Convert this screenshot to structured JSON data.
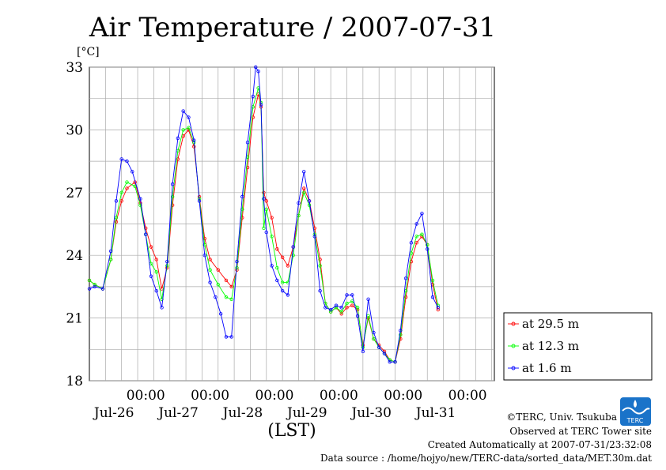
{
  "chart_data": {
    "type": "line",
    "title": "Air Temperature / 2007-07-31",
    "yunit": "[°C]",
    "xlabel": "(LST)",
    "ylim": [
      18,
      33
    ],
    "yticks": [
      18,
      21,
      24,
      27,
      30,
      33
    ],
    "xlim_hours": [
      0,
      144
    ],
    "xticks": [
      {
        "hour": 24,
        "time": "00:00",
        "date": "Jul-26"
      },
      {
        "hour": 48,
        "time": "00:00",
        "date": "Jul-27"
      },
      {
        "hour": 72,
        "time": "00:00",
        "date": "Jul-28"
      },
      {
        "hour": 96,
        "time": "00:00",
        "date": "Jul-29"
      },
      {
        "hour": 120,
        "time": "00:00",
        "date": "Jul-30"
      },
      {
        "hour": 144,
        "time": "00:00",
        "date": "Jul-31"
      }
    ],
    "grid": true,
    "legend_position": "right",
    "series": [
      {
        "name": "at 29.5 m",
        "color": "#ff0000",
        "points": [
          [
            0,
            22.8
          ],
          [
            2,
            22.6
          ],
          [
            5,
            22.4
          ],
          [
            8,
            23.8
          ],
          [
            10,
            25.6
          ],
          [
            12,
            26.6
          ],
          [
            14,
            27.2
          ],
          [
            17,
            27.5
          ],
          [
            19,
            26.5
          ],
          [
            21,
            25.3
          ],
          [
            23,
            24.4
          ],
          [
            25,
            23.8
          ],
          [
            27,
            22.4
          ],
          [
            29,
            23.4
          ],
          [
            31,
            26.4
          ],
          [
            33,
            28.6
          ],
          [
            35,
            29.7
          ],
          [
            37,
            30.0
          ],
          [
            39,
            29.2
          ],
          [
            41,
            26.8
          ],
          [
            43,
            24.8
          ],
          [
            45,
            23.8
          ],
          [
            48,
            23.3
          ],
          [
            51,
            22.8
          ],
          [
            53,
            22.5
          ],
          [
            55,
            23.3
          ],
          [
            57,
            25.8
          ],
          [
            59,
            28.2
          ],
          [
            61,
            30.6
          ],
          [
            63,
            31.7
          ],
          [
            64,
            31.1
          ],
          [
            65,
            27.0
          ],
          [
            66,
            26.6
          ],
          [
            68,
            25.8
          ],
          [
            70,
            24.3
          ],
          [
            72,
            23.9
          ],
          [
            74,
            23.5
          ],
          [
            76,
            24.4
          ],
          [
            78,
            25.9
          ],
          [
            80,
            27.2
          ],
          [
            82,
            26.6
          ],
          [
            84,
            25.3
          ],
          [
            86,
            23.8
          ],
          [
            88,
            21.7
          ],
          [
            90,
            21.3
          ],
          [
            92,
            21.5
          ],
          [
            94,
            21.2
          ],
          [
            96,
            21.5
          ],
          [
            98,
            21.6
          ],
          [
            100,
            21.4
          ],
          [
            102,
            19.7
          ],
          [
            104,
            21.0
          ],
          [
            106,
            20.0
          ],
          [
            108,
            19.7
          ],
          [
            110,
            19.4
          ],
          [
            112,
            19.0
          ],
          [
            114,
            18.9
          ],
          [
            116,
            20.0
          ],
          [
            118,
            22.0
          ],
          [
            120,
            23.7
          ],
          [
            122,
            24.6
          ],
          [
            124,
            24.9
          ],
          [
            126,
            24.5
          ],
          [
            128,
            22.6
          ],
          [
            130,
            21.4
          ]
        ]
      },
      {
        "name": "at 12.3 m",
        "color": "#00ff00",
        "points": [
          [
            0,
            22.8
          ],
          [
            2,
            22.6
          ],
          [
            5,
            22.4
          ],
          [
            8,
            23.8
          ],
          [
            10,
            25.8
          ],
          [
            12,
            27.0
          ],
          [
            14,
            27.5
          ],
          [
            17,
            27.3
          ],
          [
            19,
            26.4
          ],
          [
            21,
            25.0
          ],
          [
            23,
            23.6
          ],
          [
            25,
            23.2
          ],
          [
            27,
            21.9
          ],
          [
            29,
            23.5
          ],
          [
            31,
            26.8
          ],
          [
            33,
            29.0
          ],
          [
            35,
            30.0
          ],
          [
            37,
            30.1
          ],
          [
            39,
            29.4
          ],
          [
            41,
            26.7
          ],
          [
            43,
            24.5
          ],
          [
            45,
            23.3
          ],
          [
            48,
            22.6
          ],
          [
            51,
            22.0
          ],
          [
            53,
            21.9
          ],
          [
            55,
            23.4
          ],
          [
            57,
            26.2
          ],
          [
            59,
            28.7
          ],
          [
            61,
            31.1
          ],
          [
            63,
            32.0
          ],
          [
            64,
            31.3
          ],
          [
            65,
            25.3
          ],
          [
            66,
            26.2
          ],
          [
            68,
            24.9
          ],
          [
            70,
            23.4
          ],
          [
            72,
            22.7
          ],
          [
            74,
            22.7
          ],
          [
            76,
            24.0
          ],
          [
            78,
            25.9
          ],
          [
            80,
            27.0
          ],
          [
            82,
            26.4
          ],
          [
            84,
            25.0
          ],
          [
            86,
            23.5
          ],
          [
            88,
            21.7
          ],
          [
            90,
            21.3
          ],
          [
            92,
            21.5
          ],
          [
            94,
            21.3
          ],
          [
            96,
            21.7
          ],
          [
            98,
            21.8
          ],
          [
            100,
            21.5
          ],
          [
            102,
            19.6
          ],
          [
            104,
            21.1
          ],
          [
            106,
            20.0
          ],
          [
            108,
            19.6
          ],
          [
            110,
            19.3
          ],
          [
            112,
            19.0
          ],
          [
            114,
            18.9
          ],
          [
            116,
            20.2
          ],
          [
            118,
            22.3
          ],
          [
            120,
            24.1
          ],
          [
            122,
            24.9
          ],
          [
            124,
            25.0
          ],
          [
            126,
            24.5
          ],
          [
            128,
            22.8
          ],
          [
            130,
            21.6
          ]
        ]
      },
      {
        "name": "at 1.6 m",
        "color": "#0000ff",
        "points": [
          [
            0,
            22.4
          ],
          [
            2,
            22.5
          ],
          [
            5,
            22.4
          ],
          [
            8,
            24.2
          ],
          [
            10,
            26.6
          ],
          [
            12,
            28.6
          ],
          [
            14,
            28.5
          ],
          [
            16,
            28.0
          ],
          [
            19,
            26.7
          ],
          [
            21,
            25.0
          ],
          [
            23,
            23.0
          ],
          [
            25,
            22.3
          ],
          [
            27,
            21.5
          ],
          [
            29,
            23.7
          ],
          [
            31,
            27.4
          ],
          [
            33,
            29.6
          ],
          [
            35,
            30.9
          ],
          [
            37,
            30.6
          ],
          [
            39,
            29.5
          ],
          [
            41,
            26.6
          ],
          [
            43,
            24.0
          ],
          [
            45,
            22.7
          ],
          [
            47,
            22.0
          ],
          [
            49,
            21.2
          ],
          [
            51,
            20.1
          ],
          [
            53,
            20.1
          ],
          [
            55,
            23.7
          ],
          [
            57,
            26.8
          ],
          [
            59,
            29.4
          ],
          [
            61,
            31.6
          ],
          [
            62,
            33.0
          ],
          [
            63,
            32.8
          ],
          [
            64,
            31.2
          ],
          [
            65,
            26.7
          ],
          [
            66,
            25.1
          ],
          [
            68,
            23.5
          ],
          [
            70,
            22.8
          ],
          [
            72,
            22.3
          ],
          [
            74,
            22.1
          ],
          [
            76,
            24.4
          ],
          [
            78,
            26.5
          ],
          [
            80,
            28.0
          ],
          [
            82,
            26.6
          ],
          [
            84,
            24.9
          ],
          [
            86,
            22.3
          ],
          [
            88,
            21.5
          ],
          [
            90,
            21.4
          ],
          [
            92,
            21.6
          ],
          [
            94,
            21.5
          ],
          [
            96,
            22.1
          ],
          [
            98,
            22.1
          ],
          [
            100,
            21.1
          ],
          [
            102,
            19.4
          ],
          [
            104,
            21.9
          ],
          [
            106,
            20.3
          ],
          [
            108,
            19.6
          ],
          [
            110,
            19.3
          ],
          [
            112,
            18.9
          ],
          [
            114,
            18.9
          ],
          [
            116,
            20.4
          ],
          [
            118,
            22.9
          ],
          [
            120,
            24.6
          ],
          [
            122,
            25.5
          ],
          [
            124,
            26.0
          ],
          [
            126,
            24.3
          ],
          [
            128,
            22.0
          ],
          [
            130,
            21.5
          ]
        ]
      }
    ]
  },
  "credits": {
    "copyright": "©TERC, Univ. Tsukuba",
    "observed": "Observed at TERC Tower site",
    "created": "Created Automatically at 2007-07-31/23:32:08",
    "source": "Data source : /home/hojyo/new/TERC-data/sorted_data/MET.30m.dat",
    "logo_text": "TERC"
  }
}
